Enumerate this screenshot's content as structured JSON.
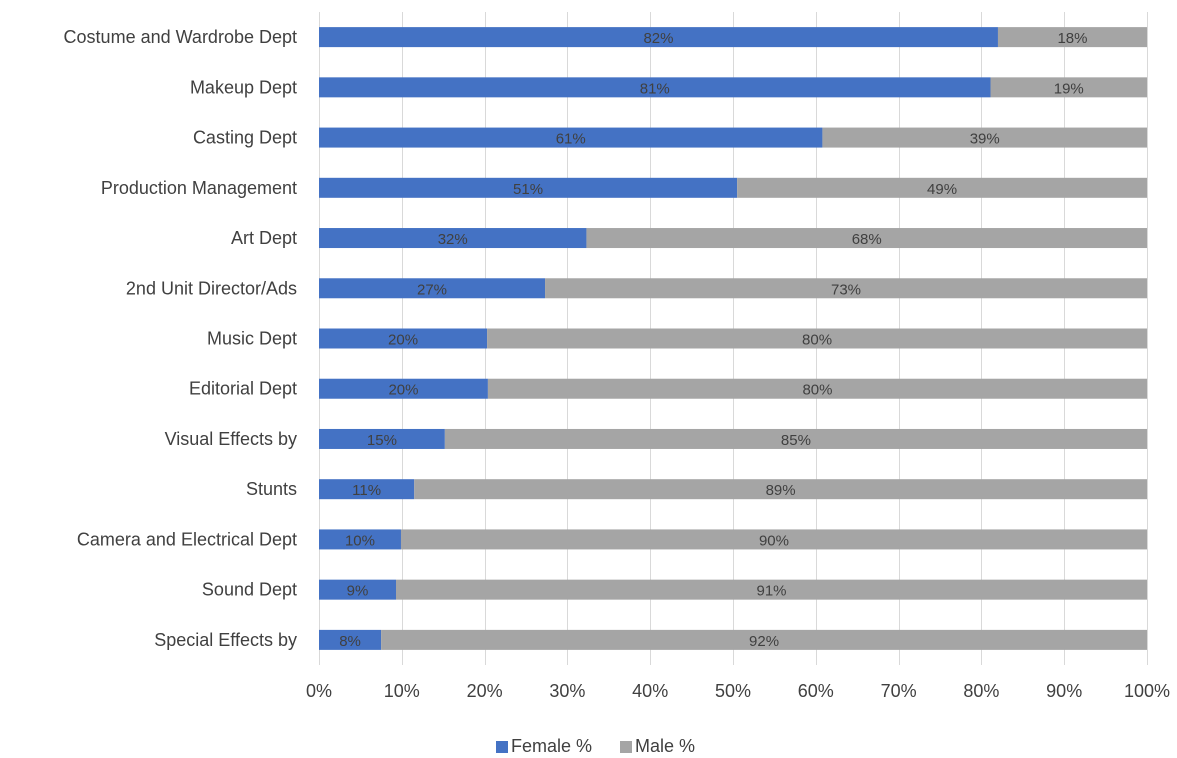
{
  "chart_data": {
    "type": "bar",
    "orientation": "horizontal",
    "stacked": "percent",
    "categories": [
      "Costume and Wardrobe Dept",
      "Makeup Dept",
      "Casting Dept",
      "Production Management",
      "Art Dept",
      "2nd Unit Director/Ads",
      "Music Dept",
      "Editorial Dept",
      "Visual Effects by",
      "Stunts",
      "Camera and Electrical Dept",
      "Sound Dept",
      "Special Effects by"
    ],
    "series": [
      {
        "name": "Female %",
        "color": "#4472c4",
        "values": [
          82,
          81,
          61,
          51,
          32,
          27,
          20,
          20,
          15,
          11,
          10,
          9,
          8
        ],
        "display_values": [
          82.0,
          81.1,
          60.8,
          50.5,
          32.3,
          27.3,
          20.3,
          20.4,
          15.2,
          11.5,
          9.9,
          9.3,
          7.5
        ]
      },
      {
        "name": "Male %",
        "color": "#a5a5a5",
        "values": [
          18,
          19,
          39,
          49,
          68,
          73,
          80,
          80,
          85,
          89,
          90,
          91,
          92
        ]
      }
    ],
    "data_label_suffix": "%",
    "x_ticks": [
      "0%",
      "10%",
      "20%",
      "30%",
      "40%",
      "50%",
      "60%",
      "70%",
      "80%",
      "90%",
      "100%"
    ],
    "xlim": [
      0,
      100
    ],
    "grid": true,
    "legend_position": "bottom",
    "title": "",
    "xlabel": "",
    "ylabel": ""
  }
}
